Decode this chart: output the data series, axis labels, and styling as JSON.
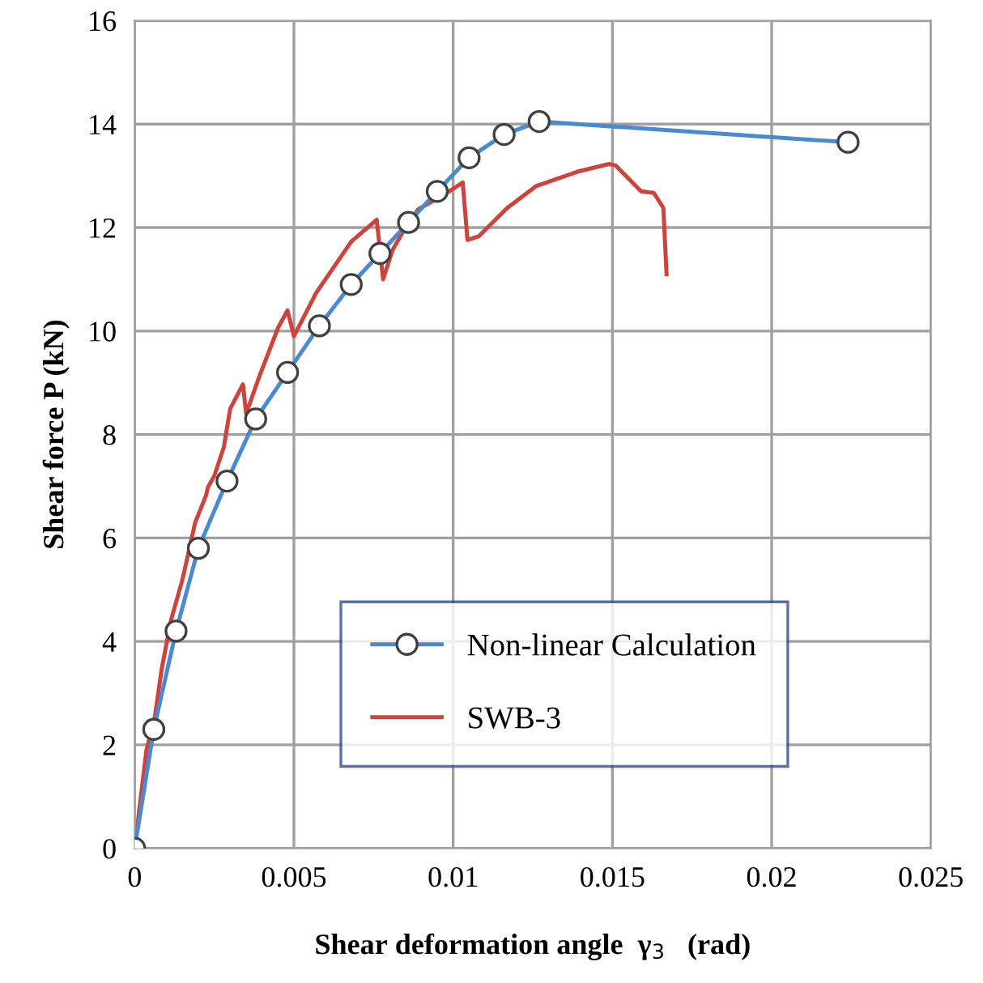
{
  "chart_data": {
    "type": "line",
    "xlabel": "Shear deformation angle  γ$_{3}$   (rad)",
    "ylabel": "Shear force P (kN)",
    "xlim": [
      0,
      0.025
    ],
    "xticks": [
      0,
      0.005,
      0.01,
      0.015,
      0.02,
      0.025
    ],
    "ylim": [
      0,
      16
    ],
    "yticks": [
      0,
      2,
      4,
      6,
      8,
      10,
      12,
      14,
      16
    ],
    "grid": true,
    "legend": "bottom right",
    "series": [
      {
        "name": "Non-linear Calculation",
        "color": "#4a8ad0",
        "marker": "circle",
        "x": [
          0,
          0.0006,
          0.0013,
          0.002,
          0.0029,
          0.0038,
          0.0048,
          0.0058,
          0.0068,
          0.0077,
          0.0086,
          0.0095,
          0.0105,
          0.0116,
          0.0127,
          0.0224
        ],
        "values": [
          0,
          2.3,
          4.2,
          5.8,
          7.1,
          8.3,
          9.2,
          10.1,
          10.9,
          11.5,
          12.1,
          12.7,
          13.35,
          13.8,
          14.05,
          13.65
        ]
      },
      {
        "name": "SWB-3",
        "color": "#d0423c",
        "marker": "none",
        "x": [
          0,
          0.00037,
          0.00063,
          0.00085,
          0.00114,
          0.00148,
          0.00156,
          0.0019,
          0.00224,
          0.0023,
          0.0025,
          0.0028,
          0.003,
          0.0034,
          0.0035,
          0.0039,
          0.0045,
          0.0048,
          0.005,
          0.0057,
          0.0068,
          0.0076,
          0.0078,
          0.0081,
          0.0085,
          0.0089,
          0.0098,
          0.0103,
          0.01045,
          0.0108,
          0.0117,
          0.0126,
          0.0139,
          0.0149,
          0.0151,
          0.0159,
          0.0163,
          0.0166,
          0.0167
        ],
        "values": [
          0,
          1.9,
          2.53,
          3.47,
          4.41,
          5.15,
          5.36,
          6.3,
          6.82,
          6.98,
          7.2,
          7.76,
          8.5,
          8.97,
          8.4,
          9.1,
          10.06,
          10.4,
          9.9,
          10.74,
          11.73,
          12.15,
          11.0,
          11.57,
          12.0,
          12.35,
          12.67,
          12.87,
          11.76,
          11.83,
          12.38,
          12.8,
          13.08,
          13.23,
          13.2,
          12.7,
          12.67,
          12.38,
          11.1
        ]
      }
    ]
  }
}
